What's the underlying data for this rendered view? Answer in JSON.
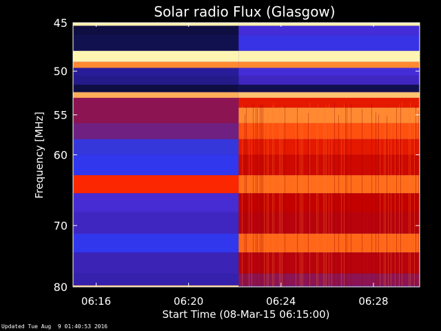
{
  "chart_data": {
    "type": "heatmap",
    "title": "Solar radio Flux (Glasgow)",
    "xlabel": "Start Time (08-Mar-15 06:15:00)",
    "ylabel": "Frequency [MHz]",
    "y_scale": "log",
    "y_inverted": true,
    "ylim": [
      45,
      80
    ],
    "y_ticks": [
      45,
      50,
      55,
      60,
      70,
      80
    ],
    "y_ticklabels": [
      "45",
      "50",
      "55",
      "60",
      "70",
      "80"
    ],
    "x_ticks": [
      "06:16",
      "06:20",
      "06:24",
      "06:28"
    ],
    "x_range": [
      "06:15:00",
      "06:30:00"
    ],
    "event_onset_time": "06:22:10",
    "colormap": [
      "#000000",
      "#10104a",
      "#2a1c9a",
      "#4a2ad0",
      "#2040ff",
      "#c00000",
      "#ff2a00",
      "#ff7a20",
      "#ffc878",
      "#ffffc0"
    ],
    "bands": [
      {
        "freq": 45.1,
        "level_before": 0.97,
        "level_after": 0.97
      },
      {
        "freq": 45.5,
        "level_before": 0.1,
        "level_after": 0.35
      },
      {
        "freq": 47.0,
        "level_before": 0.12,
        "level_after": 0.38
      },
      {
        "freq": 48.7,
        "level_before": 0.98,
        "level_after": 0.98
      },
      {
        "freq": 49.3,
        "level_before": 0.8,
        "level_after": 0.8
      },
      {
        "freq": 50.0,
        "level_before": 0.22,
        "level_after": 0.35
      },
      {
        "freq": 51.0,
        "level_before": 0.2,
        "level_after": 0.3
      },
      {
        "freq": 52.0,
        "level_before": 0.1,
        "level_after": 0.12
      },
      {
        "freq": 52.7,
        "level_before": 0.85,
        "level_after": 0.88
      },
      {
        "freq": 53.3,
        "level_before": 0.52,
        "level_after": 0.62
      },
      {
        "freq": 55.0,
        "level_before": 0.52,
        "level_after": 0.8
      },
      {
        "freq": 57.0,
        "level_before": 0.5,
        "level_after": 0.72
      },
      {
        "freq": 59.0,
        "level_before": 0.46,
        "level_after": 0.62
      },
      {
        "freq": 61.0,
        "level_before": 0.4,
        "level_after": 0.58
      },
      {
        "freq": 64.5,
        "level_before": 0.66,
        "level_after": 0.76
      },
      {
        "freq": 66.0,
        "level_before": 0.34,
        "level_after": 0.56
      },
      {
        "freq": 70.0,
        "level_before": 0.3,
        "level_after": 0.55
      },
      {
        "freq": 72.5,
        "level_before": 0.4,
        "level_after": 0.75
      },
      {
        "freq": 76.0,
        "level_before": 0.28,
        "level_after": 0.55
      },
      {
        "freq": 79.5,
        "level_before": 0.26,
        "level_after": 0.52
      },
      {
        "freq": 80.0,
        "level_before": 0.9,
        "level_after": 0.5
      }
    ]
  },
  "footer": {
    "updated": "Updated Tue Aug  9 01:40:53 2016"
  }
}
